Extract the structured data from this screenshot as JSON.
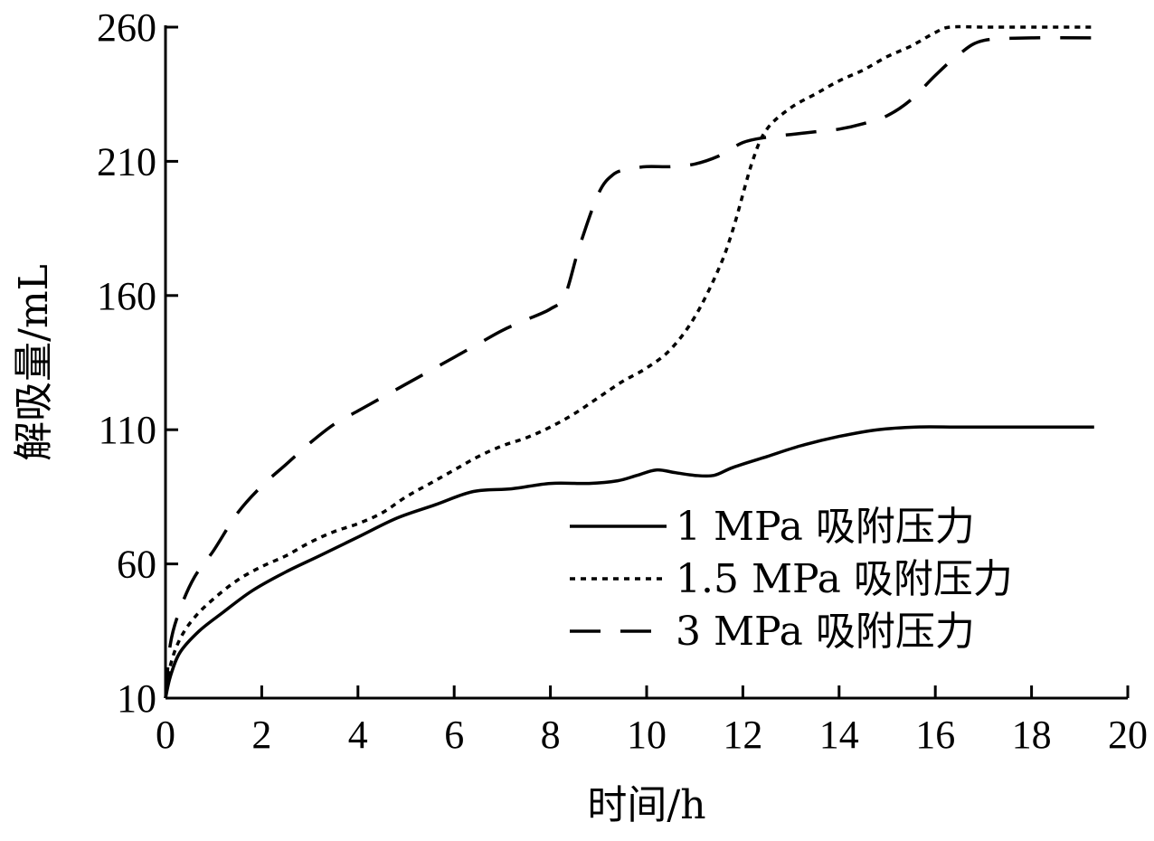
{
  "chart_data": {
    "type": "line",
    "title": "",
    "xlabel": "时间/h",
    "ylabel": "解吸量/mL",
    "xlim": [
      0,
      20
    ],
    "ylim": [
      10,
      260
    ],
    "x_ticks": [
      "0",
      "2",
      "4",
      "6",
      "8",
      "10",
      "12",
      "14",
      "16",
      "18",
      "20"
    ],
    "y_ticks": [
      "10",
      "60",
      "110",
      "160",
      "210",
      "260"
    ],
    "grid": false,
    "legend_position": "lower-right",
    "series": [
      {
        "name": "1 MPa 吸附压力",
        "line_style": "solid",
        "color": "#000000",
        "x": [
          0,
          0.1,
          0.3,
          0.7,
          1.2,
          1.8,
          2.5,
          3.2,
          4,
          4.8,
          5.6,
          6.4,
          7.2,
          8,
          8.8,
          9.4,
          9.8,
          10.2,
          10.6,
          11,
          11.4,
          11.8,
          12.5,
          13.2,
          14,
          14.8,
          15.6,
          16.4,
          17,
          18,
          19.3
        ],
        "y": [
          10,
          18,
          27,
          35,
          42,
          50,
          57,
          63,
          70,
          77,
          82,
          87,
          88,
          90,
          90,
          91,
          93,
          95,
          94,
          93,
          93,
          96,
          100,
          104,
          107.5,
          110,
          111,
          111,
          111,
          111,
          111
        ]
      },
      {
        "name": "1.5 MPa 吸附压力",
        "line_style": "dotted",
        "color": "#000000",
        "x": [
          0,
          0.1,
          0.3,
          0.6,
          1,
          1.5,
          2,
          2.5,
          3,
          3.5,
          4,
          4.5,
          5,
          5.5,
          6,
          6.5,
          7,
          7.5,
          8,
          8.5,
          9,
          9.5,
          10,
          10.5,
          11,
          11.5,
          11.8,
          12.2,
          12.5,
          13,
          13.5,
          14,
          14.5,
          15,
          15.5,
          16,
          16.3,
          17,
          18,
          19.3
        ],
        "y": [
          10,
          22,
          32,
          40,
          47,
          54,
          59,
          63,
          68,
          72,
          75,
          79,
          85,
          90,
          95,
          100,
          104,
          107,
          111,
          116,
          122,
          128,
          133,
          140,
          152,
          170,
          185,
          210,
          222,
          230,
          235,
          240,
          244,
          249,
          253,
          258,
          260,
          260,
          260,
          260
        ]
      },
      {
        "name": "3 MPa 吸附压力",
        "line_style": "dashed",
        "color": "#000000",
        "x": [
          0,
          0.1,
          0.3,
          0.6,
          1,
          1.5,
          2,
          2.5,
          3,
          3.5,
          4,
          4.5,
          5,
          5.5,
          6,
          6.5,
          7,
          7.5,
          8,
          8.3,
          8.6,
          9,
          9.3,
          9.6,
          10,
          10.5,
          11,
          11.5,
          12,
          12.5,
          13,
          13.5,
          14,
          14.5,
          15,
          15.5,
          16,
          16.5,
          17,
          18,
          19.3
        ],
        "y": [
          10,
          30,
          43,
          55,
          65,
          79,
          89,
          97,
          105,
          112,
          117,
          122,
          127,
          132,
          137,
          142,
          147,
          151,
          155,
          160,
          178,
          198,
          205,
          207,
          208,
          208,
          209,
          212,
          217,
          219,
          220,
          221,
          222,
          224,
          227,
          233,
          242,
          250,
          255,
          256,
          256
        ]
      }
    ]
  }
}
